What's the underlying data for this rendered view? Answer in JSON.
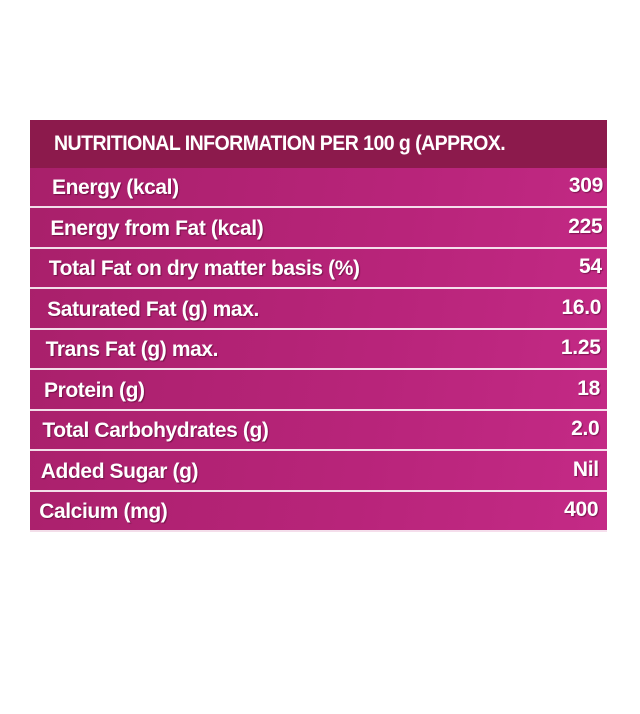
{
  "header": {
    "title": "NUTRITIONAL INFORMATION PER 100 g (APPROX."
  },
  "table": {
    "rows": [
      [
        "Energy (kcal)",
        "309"
      ],
      [
        "Energy from Fat (kcal)",
        "225"
      ],
      [
        "Total Fat on dry matter basis (%)",
        "54"
      ],
      [
        "Saturated Fat (g) max.",
        "16.0"
      ],
      [
        "Trans Fat (g) max.",
        "1.25"
      ],
      [
        "Protein (g)",
        "18"
      ],
      [
        "Total Carbohydrates (g)",
        "2.0"
      ],
      [
        "Added Sugar (g)",
        "Nil"
      ],
      [
        "Calcium (mg)",
        "400"
      ]
    ]
  }
}
